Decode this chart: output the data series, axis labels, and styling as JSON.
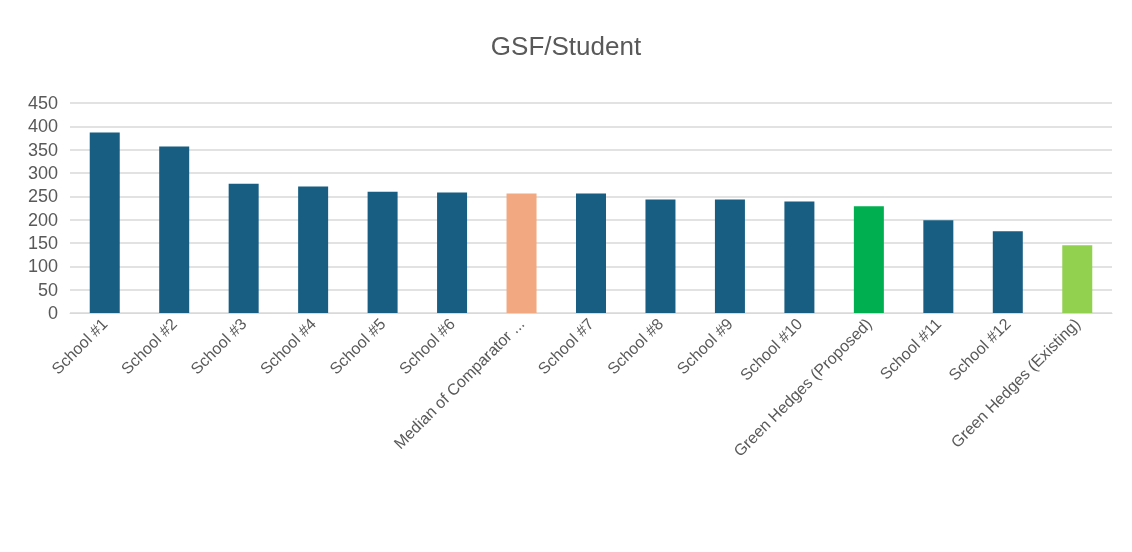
{
  "chart_data": {
    "type": "bar",
    "title": "GSF/Student",
    "categories": [
      "School #1",
      "School #2",
      "School #3",
      "School #4",
      "School #5",
      "School #6",
      "Median of Comparator ...",
      "School #7",
      "School #8",
      "School #9",
      "School #10",
      "Green Hedges (Proposed)",
      "School #11",
      "School #12",
      "Green Hedges (Existing)"
    ],
    "values": [
      387,
      357,
      277,
      271,
      260,
      258,
      256,
      256,
      243,
      243,
      239,
      229,
      199,
      175,
      145
    ],
    "colors": [
      "#175e82",
      "#175e82",
      "#175e82",
      "#175e82",
      "#175e82",
      "#175e82",
      "#f2a880",
      "#175e82",
      "#175e82",
      "#175e82",
      "#175e82",
      "#00b050",
      "#175e82",
      "#175e82",
      "#92d050"
    ],
    "ylim": [
      0,
      450
    ],
    "yticks": [
      0,
      50,
      100,
      150,
      200,
      250,
      300,
      350,
      400,
      450
    ],
    "grid": "y"
  }
}
